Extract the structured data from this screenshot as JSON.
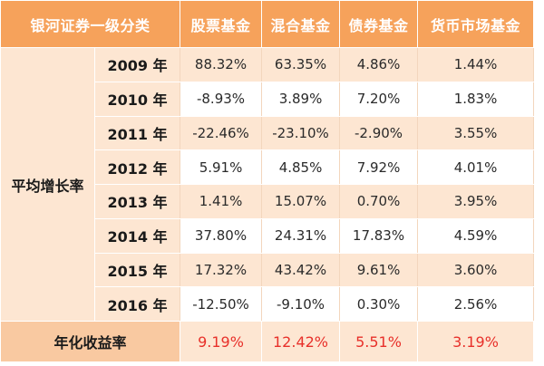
{
  "table": {
    "header": {
      "category": "银河证券一级分类",
      "stock": "股票基金",
      "mixed": "混合基金",
      "bond": "债券基金",
      "money": "货币市场基金"
    },
    "row_group_label": "平均增长率",
    "rows": [
      {
        "year": "2009 年",
        "stock": "88.32%",
        "mixed": "63.35%",
        "bond": "4.86%",
        "money": "1.44%"
      },
      {
        "year": "2010 年",
        "stock": "-8.93%",
        "mixed": "3.89%",
        "bond": "7.20%",
        "money": "1.83%"
      },
      {
        "year": "2011 年",
        "stock": "-22.46%",
        "mixed": "-23.10%",
        "bond": "-2.90%",
        "money": "3.55%"
      },
      {
        "year": "2012 年",
        "stock": "5.91%",
        "mixed": "4.85%",
        "bond": "7.92%",
        "money": "4.01%"
      },
      {
        "year": "2013 年",
        "stock": "1.41%",
        "mixed": "15.07%",
        "bond": "0.70%",
        "money": "3.95%"
      },
      {
        "year": "2014 年",
        "stock": "37.80%",
        "mixed": "24.31%",
        "bond": "17.83%",
        "money": "4.59%"
      },
      {
        "year": "2015 年",
        "stock": "17.32%",
        "mixed": "43.42%",
        "bond": "9.61%",
        "money": "3.60%"
      },
      {
        "year": "2016 年",
        "stock": "-12.50%",
        "mixed": "-9.10%",
        "bond": "0.30%",
        "money": "2.56%"
      }
    ],
    "footer": {
      "label": "年化收益率",
      "stock": "9.19%",
      "mixed": "12.42%",
      "bond": "5.51%",
      "money": "3.19%"
    }
  },
  "colors": {
    "header_bg": "#f6a25b",
    "row_tint": "#fde6d2",
    "footer_label_bg": "#f9c9a1",
    "footer_value_text": "#e8302a"
  }
}
